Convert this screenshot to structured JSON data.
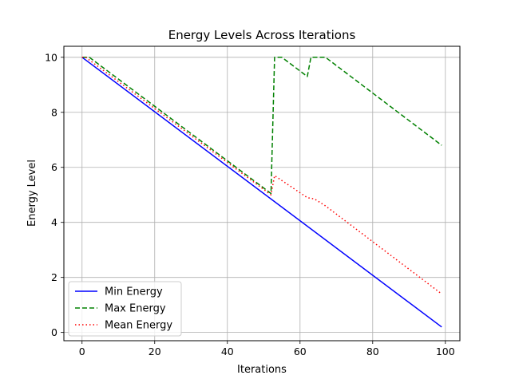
{
  "chart_data": {
    "type": "line",
    "title": "Energy Levels Across Iterations",
    "xlabel": "Iterations",
    "ylabel": "Energy Level",
    "xlim": [
      -5,
      104
    ],
    "ylim": [
      -0.3,
      10.4
    ],
    "xticks": [
      0,
      20,
      40,
      60,
      80,
      100
    ],
    "yticks": [
      0,
      2,
      4,
      6,
      8,
      10
    ],
    "grid": true,
    "legend": {
      "position": "lower-left"
    },
    "series": [
      {
        "name": "Min Energy",
        "color": "#0000ff",
        "style": "solid",
        "x": [
          0,
          99
        ],
        "y": [
          10.0,
          0.2
        ]
      },
      {
        "name": "Max Energy",
        "color": "#008000",
        "style": "dashed",
        "x": [
          0,
          2,
          52,
          53,
          55,
          62,
          63,
          67,
          99
        ],
        "y": [
          10.0,
          10.0,
          5.05,
          10.0,
          10.0,
          9.3,
          10.0,
          10.0,
          6.8
        ]
      },
      {
        "name": "Mean Energy",
        "color": "#ff0000",
        "style": "dotted",
        "x": [
          0,
          1,
          52,
          53,
          62,
          64,
          67,
          99
        ],
        "y": [
          10.0,
          10.0,
          5.0,
          5.7,
          4.9,
          4.85,
          4.6,
          1.4
        ]
      }
    ]
  }
}
